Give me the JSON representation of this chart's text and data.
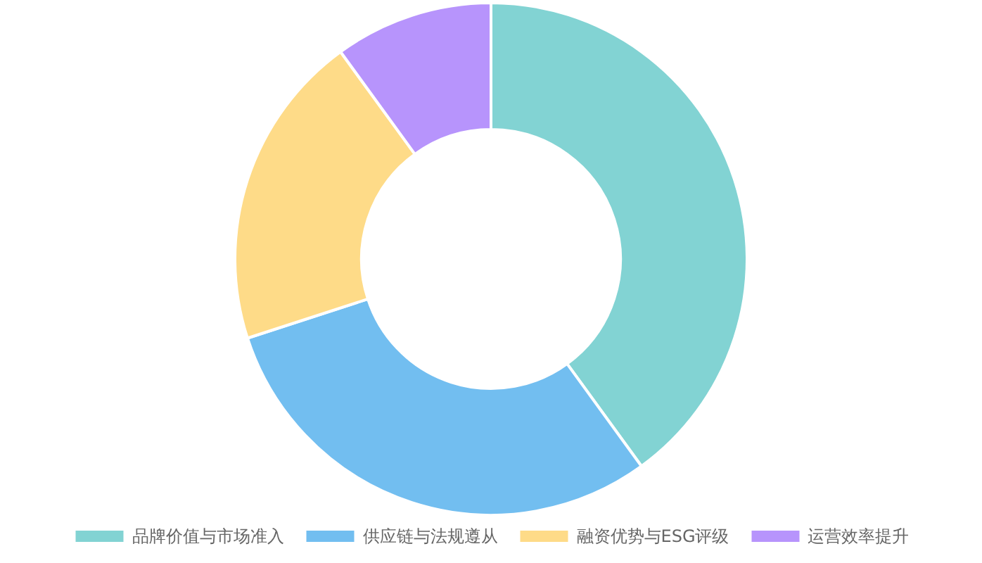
{
  "chart_data": {
    "type": "donut",
    "categories": [
      "品牌价值与市场准入",
      "供应链与法规遵从",
      "融资优势与ESG评级",
      "运营效率提升"
    ],
    "values": [
      40,
      30,
      20,
      10
    ],
    "colors": [
      "#82d3d3",
      "#72bef0",
      "#fedb88",
      "#b794fc"
    ],
    "legend": "bottom"
  }
}
